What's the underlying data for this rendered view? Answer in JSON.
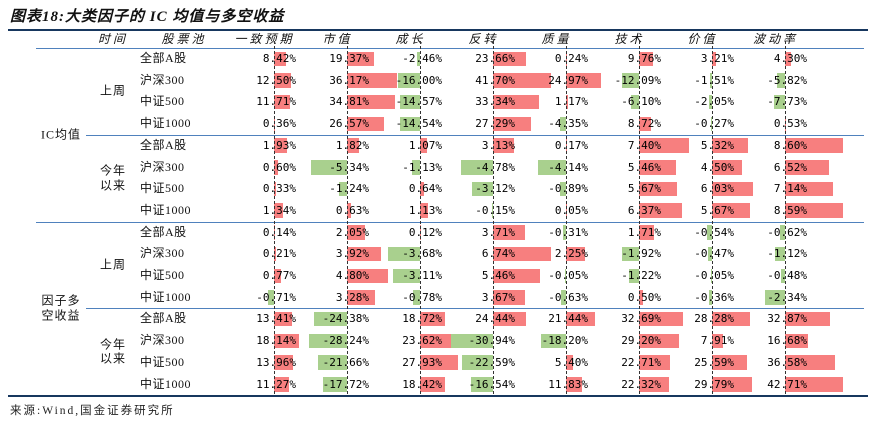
{
  "title": "图表18:大类因子的 IC 均值与多空收益",
  "source": "来源:Wind,国金证券研究所",
  "colors": {
    "positive_bar": "#f77f7f",
    "negative_bar": "#a9d08e",
    "grid_blue": "#4f81bd",
    "rule_dark": "#17375e",
    "axis_dash": "#333333"
  },
  "chart_data": {
    "type": "table",
    "title": "图表18:大类因子的 IC 均值与多空收益",
    "unit": "%",
    "columns": [
      "时间",
      "股票池",
      "一致预期",
      "市值",
      "成长",
      "反转",
      "质量",
      "技术",
      "价值",
      "波动率"
    ],
    "sections": [
      {
        "label": "IC均值",
        "blocks": [
          {
            "period": "上周",
            "rows": [
              {
                "pool": "全部A股",
                "values": [
                  8.42,
                  19.37,
                  -2.46,
                  23.66,
                  0.24,
                  9.76,
                  3.21,
                  4.3
                ]
              },
              {
                "pool": "沪深300",
                "values": [
                  12.5,
                  36.17,
                  -16.0,
                  41.7,
                  24.97,
                  -12.09,
                  -1.51,
                  -5.82
                ]
              },
              {
                "pool": "中证500",
                "values": [
                  11.71,
                  34.81,
                  -14.57,
                  33.34,
                  1.17,
                  -6.1,
                  -2.05,
                  -7.73
                ]
              },
              {
                "pool": "中证1000",
                "values": [
                  0.36,
                  26.57,
                  -14.54,
                  27.29,
                  -4.35,
                  8.72,
                  -0.27,
                  0.53
                ]
              }
            ]
          },
          {
            "period": "今年以来",
            "rows": [
              {
                "pool": "全部A股",
                "values": [
                  1.93,
                  1.82,
                  1.07,
                  3.13,
                  0.17,
                  7.4,
                  5.32,
                  8.6
                ]
              },
              {
                "pool": "沪深300",
                "values": [
                  0.6,
                  -5.34,
                  -1.13,
                  -4.78,
                  -4.14,
                  5.46,
                  4.5,
                  6.52
                ]
              },
              {
                "pool": "中证500",
                "values": [
                  0.33,
                  -1.24,
                  0.64,
                  -3.12,
                  -0.89,
                  5.67,
                  6.03,
                  7.14
                ]
              },
              {
                "pool": "中证1000",
                "values": [
                  1.34,
                  0.63,
                  1.13,
                  -0.15,
                  0.05,
                  6.37,
                  5.67,
                  8.59
                ]
              }
            ]
          }
        ]
      },
      {
        "label": "因子多空收益",
        "blocks": [
          {
            "period": "上周",
            "rows": [
              {
                "pool": "全部A股",
                "values": [
                  0.14,
                  2.05,
                  0.12,
                  3.71,
                  -0.31,
                  1.71,
                  -0.54,
                  -0.62
                ]
              },
              {
                "pool": "沪深300",
                "values": [
                  0.21,
                  3.92,
                  -3.68,
                  6.74,
                  2.25,
                  -1.92,
                  -0.47,
                  -1.12
                ]
              },
              {
                "pool": "中证500",
                "values": [
                  0.77,
                  4.8,
                  -3.11,
                  5.46,
                  -0.05,
                  -1.22,
                  -0.05,
                  -0.48
                ]
              },
              {
                "pool": "中证1000",
                "values": [
                  -0.71,
                  3.28,
                  -0.78,
                  3.67,
                  -0.63,
                  0.5,
                  -0.36,
                  -2.34
                ]
              }
            ]
          },
          {
            "period": "今年以来",
            "rows": [
              {
                "pool": "全部A股",
                "values": [
                  13.41,
                  -24.38,
                  18.72,
                  24.44,
                  21.44,
                  32.69,
                  28.28,
                  32.87
                ]
              },
              {
                "pool": "沪深300",
                "values": [
                  18.14,
                  -28.24,
                  23.62,
                  -30.94,
                  -18.2,
                  29.2,
                  7.91,
                  16.68
                ]
              },
              {
                "pool": "中证500",
                "values": [
                  13.96,
                  -21.66,
                  27.93,
                  -22.59,
                  5.4,
                  22.71,
                  25.59,
                  36.58
                ]
              },
              {
                "pool": "中证1000",
                "values": [
                  11.27,
                  -17.72,
                  18.42,
                  -16.54,
                  11.83,
                  22.32,
                  29.79,
                  42.71
                ]
              }
            ]
          }
        ]
      }
    ]
  }
}
